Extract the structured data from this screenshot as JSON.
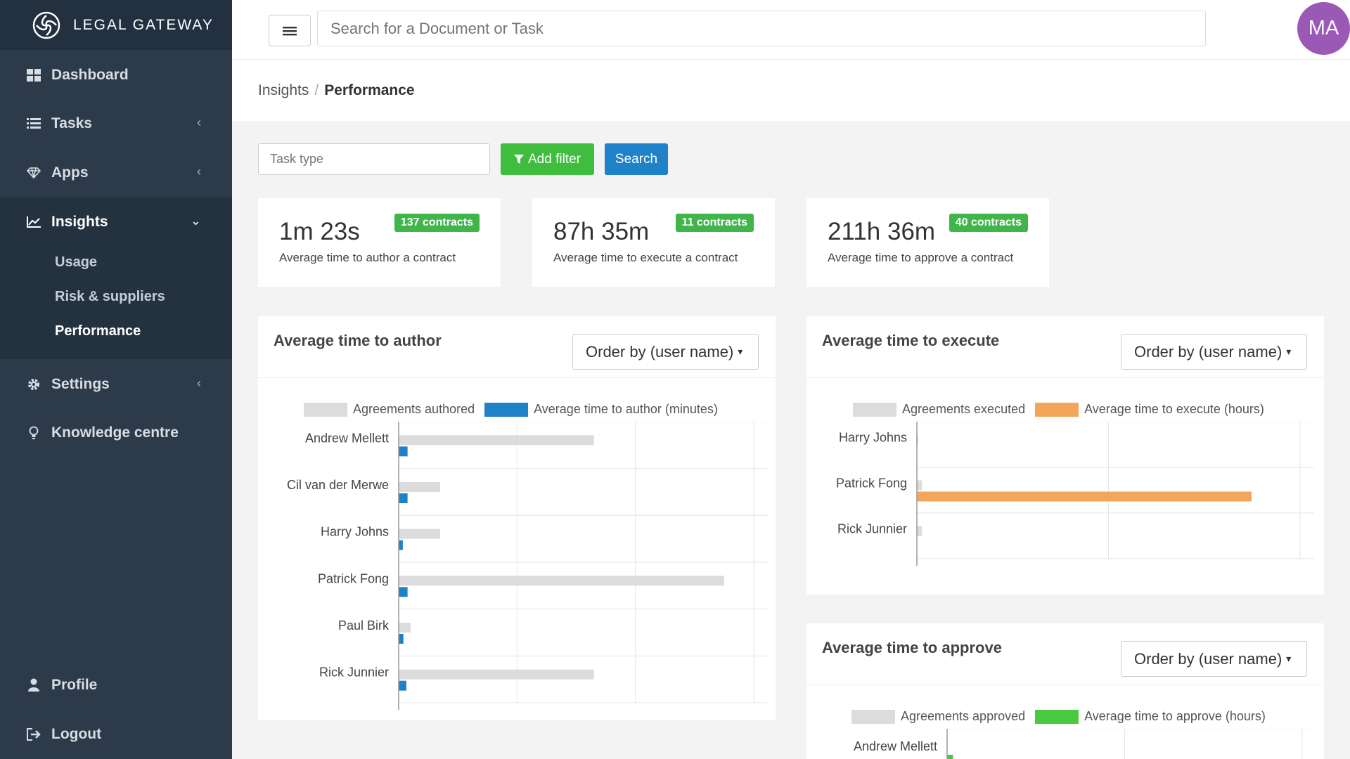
{
  "brand": {
    "name": "LEGAL GATEWAY"
  },
  "nav": {
    "dashboard": "Dashboard",
    "tasks": "Tasks",
    "apps": "Apps",
    "insights": "Insights",
    "usage": "Usage",
    "risk": "Risk & suppliers",
    "performance": "Performance",
    "settings": "Settings",
    "knowledge": "Knowledge centre",
    "profile": "Profile",
    "logout": "Logout"
  },
  "search": {
    "placeholder": "Search for a Document or Task"
  },
  "user": {
    "initials": "MA"
  },
  "breadcrumb": {
    "parent": "Insights",
    "current": "Performance"
  },
  "filters": {
    "task_type_placeholder": "Task type",
    "add_filter": "Add filter",
    "search": "Search"
  },
  "stats": [
    {
      "value": "1m 23s",
      "badge": "137 contracts",
      "label": "Average time to author a contract"
    },
    {
      "value": "87h 35m",
      "badge": "11 contracts",
      "label": "Average time to execute a contract"
    },
    {
      "value": "211h 36m",
      "badge": "40 contracts",
      "label": "Average time to approve a contract"
    }
  ],
  "panels": {
    "author": {
      "title": "Average time to author",
      "order": "Order by (user name)",
      "legend_a": "Agreements authored",
      "legend_b": "Average time to author (minutes)"
    },
    "execute": {
      "title": "Average time to execute",
      "order": "Order by (user name)",
      "legend_a": "Agreements executed",
      "legend_b": "Average time to execute (hours)"
    },
    "approve": {
      "title": "Average time to approve",
      "order": "Order by (user name)",
      "legend_a": "Agreements approved",
      "legend_b": "Average time to approve (hours)"
    }
  },
  "colors": {
    "grey": "#dcdcdc",
    "blue": "#1f82c9",
    "orange": "#f2a65a",
    "green": "#49c93f"
  },
  "chart_data": [
    {
      "type": "bar",
      "orientation": "horizontal",
      "categories": [
        "Andrew Mellett",
        "Cil van der Merwe",
        "Harry Johns",
        "Patrick Fong",
        "Paul Birk",
        "Rick Junnier"
      ],
      "series": [
        {
          "name": "Agreements authored",
          "values": [
            33,
            7,
            7,
            55,
            2,
            33
          ]
        },
        {
          "name": "Average time to author (minutes)",
          "values": [
            1.5,
            1.5,
            0.7,
            1.5,
            0.8,
            1.3
          ]
        }
      ],
      "xlim": [
        0,
        60
      ],
      "grid": true
    },
    {
      "type": "bar",
      "orientation": "horizontal",
      "categories": [
        "Harry Johns",
        "Patrick Fong",
        "Rick Junnier"
      ],
      "series": [
        {
          "name": "Agreements executed",
          "values": [
            0.5,
            2,
            2
          ]
        },
        {
          "name": "Average time to execute (hours)",
          "values": [
            0,
            131,
            0
          ]
        }
      ],
      "xlim": [
        0,
        150
      ],
      "grid": true
    },
    {
      "type": "bar",
      "orientation": "horizontal",
      "categories": [
        "Andrew Mellett"
      ],
      "series": [
        {
          "name": "Agreements approved",
          "values": [
            0
          ]
        },
        {
          "name": "Average time to approve (hours)",
          "values": [
            1
          ]
        }
      ],
      "grid": true
    }
  ]
}
